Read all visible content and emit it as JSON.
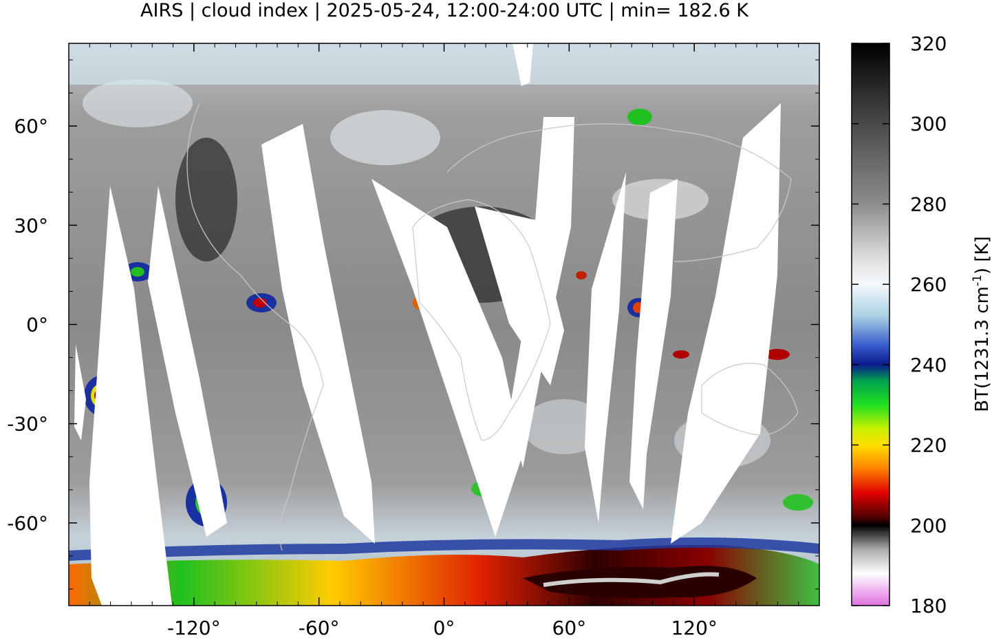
{
  "chart_data": {
    "type": "heatmap",
    "title": "AIRS | cloud index | 2025-05-24, 12:00-24:00 UTC | min= 182.6 K",
    "x_ticks": [
      -120,
      -60,
      0,
      60,
      120
    ],
    "x_tick_labels": [
      "-120°",
      "-60°",
      "0°",
      "60°",
      "120°"
    ],
    "y_ticks": [
      60,
      30,
      0,
      -30,
      -60
    ],
    "y_tick_labels": [
      "60°",
      "30°",
      "0°",
      "-30°",
      "-60°"
    ],
    "xlim": [
      -180,
      180
    ],
    "ylim": [
      -85,
      85
    ],
    "colorbar": {
      "label": "BT(1231.3 cm",
      "label_sup": "-1",
      "label_end": ") [K]",
      "range": [
        180,
        320
      ],
      "ticks": [
        320,
        300,
        280,
        260,
        240,
        220,
        200,
        180
      ],
      "tick_labels": [
        "320",
        "300",
        "280",
        "260",
        "240",
        "220",
        "200",
        "180"
      ],
      "stops": [
        {
          "value": 320,
          "color": "#000000"
        },
        {
          "value": 300,
          "color": "#4a4a4a"
        },
        {
          "value": 280,
          "color": "#8c8c8c"
        },
        {
          "value": 265,
          "color": "#e6e6e6"
        },
        {
          "value": 260,
          "color": "#f4f8fb"
        },
        {
          "value": 252,
          "color": "#a9d0e2"
        },
        {
          "value": 245,
          "color": "#3b5fcf"
        },
        {
          "value": 240,
          "color": "#0a1a8c"
        },
        {
          "value": 236,
          "color": "#00a050"
        },
        {
          "value": 230,
          "color": "#20e020"
        },
        {
          "value": 224,
          "color": "#c8f000"
        },
        {
          "value": 220,
          "color": "#ffe000"
        },
        {
          "value": 214,
          "color": "#ff8000"
        },
        {
          "value": 208,
          "color": "#e00000"
        },
        {
          "value": 202,
          "color": "#500000"
        },
        {
          "value": 200,
          "color": "#000000"
        },
        {
          "value": 194,
          "color": "#aaaaaa"
        },
        {
          "value": 188,
          "color": "#ffffff"
        },
        {
          "value": 180,
          "color": "#e070e0"
        }
      ]
    },
    "colors": {
      "background_field": "#8f8f8f",
      "gap": "#ffffff",
      "coastline": "#c9c9c9",
      "antarctic_cold": "#7a0000"
    }
  }
}
